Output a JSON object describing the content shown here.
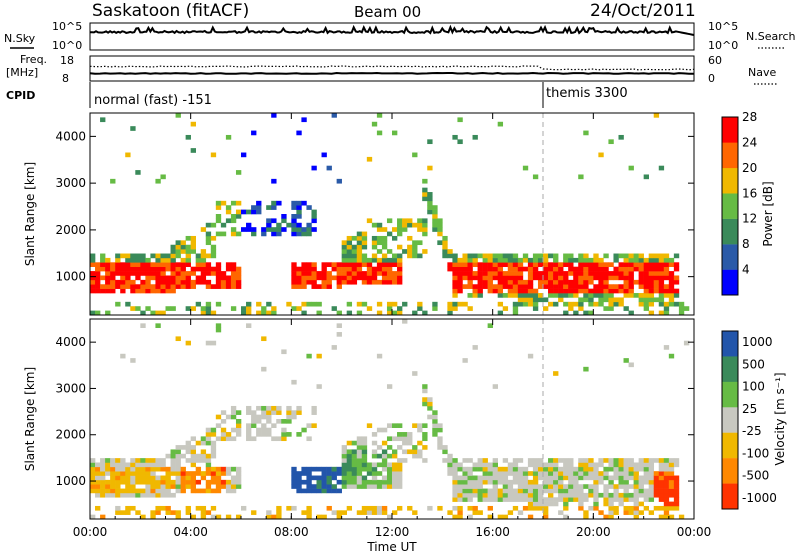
{
  "header": {
    "station": "Saskatoon (fitACF)",
    "beam": "Beam 00",
    "date": "24/Oct/2011"
  },
  "top_panels": {
    "nsky_label": "N.Sky",
    "nsky_ticks": [
      "10^5",
      "10^0"
    ],
    "nsearch_label": "N.Search",
    "nsearch_ticks": [
      "10^5",
      "10^0"
    ],
    "freq_label": "Freq.",
    "freq_unit": "[MHz]",
    "freq_ticks": [
      "18",
      "8"
    ],
    "nave_label": "Nave",
    "nave_ticks": [
      "60",
      "0"
    ],
    "cpid_label": "CPID",
    "cpid_segments": [
      {
        "label": "normal (fast) -151",
        "start_hour": 0,
        "end_hour": 18
      },
      {
        "label": "themis 3300",
        "start_hour": 18,
        "end_hour": 24
      }
    ]
  },
  "chart_data": [
    {
      "type": "heatmap",
      "panel": "power",
      "ylabel": "Slant Range [km]",
      "xlim_hours": [
        0,
        24
      ],
      "ylim_km": [
        180,
        4500
      ],
      "yticks": [
        "1000",
        "2000",
        "3000",
        "4000"
      ],
      "colorbar_label": "Power [dB]",
      "colorbar_ticks": [
        "4",
        "8",
        "12",
        "16",
        "20",
        "24",
        "28"
      ],
      "colors": [
        "#0000ff",
        "#2a5aa8",
        "#3a8a5a",
        "#66bb44",
        "#f0b800",
        "#ff6600",
        "#ff0000"
      ]
    },
    {
      "type": "heatmap",
      "panel": "velocity",
      "ylabel": "Slant Range [km]",
      "xlim_hours": [
        0,
        24
      ],
      "ylim_km": [
        180,
        4500
      ],
      "yticks": [
        "1000",
        "2000",
        "3000",
        "4000"
      ],
      "colorbar_label": "Velocity [m s⁻¹]",
      "colorbar_ticks": [
        "1000",
        "500",
        "100",
        "25",
        "-25",
        "-100",
        "-500",
        "-1000"
      ],
      "colors": [
        "#2255aa",
        "#3a8a5a",
        "#66bb44",
        "#c8c8c0",
        "#f0b800",
        "#ff8800",
        "#ff3300"
      ]
    }
  ],
  "xaxis": {
    "ticks": [
      "00:00",
      "04:00",
      "08:00",
      "12:00",
      "16:00",
      "20:00",
      "00:00"
    ],
    "label": "Time UT"
  }
}
